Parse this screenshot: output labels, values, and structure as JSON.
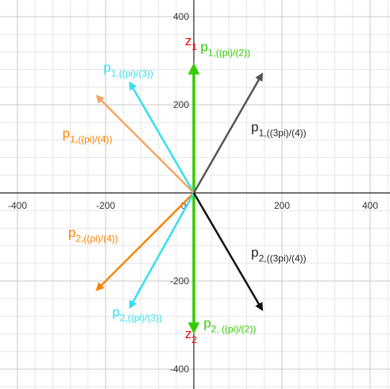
{
  "chart_data": {
    "type": "vector-plot",
    "xlim": [
      -440,
      440
    ],
    "ylim": [
      -440,
      440
    ],
    "grid": true,
    "x_ticks": [
      {
        "value": -400,
        "label": "-400"
      },
      {
        "value": -200,
        "label": "-200"
      },
      {
        "value": 0,
        "label": "0"
      },
      {
        "value": 200,
        "label": "200"
      },
      {
        "value": 400,
        "label": "400"
      }
    ],
    "y_ticks": [
      {
        "value": 400,
        "label": "400"
      },
      {
        "value": 200,
        "label": "200"
      },
      {
        "value": -200,
        "label": "-200"
      },
      {
        "value": -400,
        "label": "-400"
      }
    ],
    "vectors": [
      {
        "id": "z1",
        "x": 0,
        "y": 290,
        "color": "#33cc00",
        "width": 3.5
      },
      {
        "id": "z2",
        "x": 0,
        "y": -315,
        "color": "#33cc00",
        "width": 3.5
      },
      {
        "id": "p1_pi3",
        "x": -145,
        "y": 250,
        "color": "#33e0f0",
        "width": 2.5
      },
      {
        "id": "p1_pi4",
        "x": -220,
        "y": 220,
        "color": "#f4a460",
        "width": 2.5
      },
      {
        "id": "p1_3pi4",
        "x": 155,
        "y": 270,
        "color": "#555555",
        "width": 2.5
      },
      {
        "id": "p2_pi4",
        "x": -220,
        "y": -220,
        "color": "#ff8000",
        "width": 2.5
      },
      {
        "id": "p2_pi3",
        "x": -145,
        "y": -260,
        "color": "#33e0f0",
        "width": 2.5
      },
      {
        "id": "p2_3pi4",
        "x": 155,
        "y": -265,
        "color": "#111111",
        "width": 2.5
      }
    ],
    "labels": [
      {
        "id": "z1",
        "base": "z",
        "sub": "1",
        "color": "#ff0000",
        "x": -20,
        "y": 335
      },
      {
        "id": "z2",
        "base": "z",
        "sub": "2",
        "color": "#ff0000",
        "x": -20,
        "y": -330
      },
      {
        "id": "p1_pi2",
        "base": "p",
        "sub": "1,((pi)/(2))",
        "color": "#33cc00",
        "x": 15,
        "y": 322
      },
      {
        "id": "p1_pi3",
        "base": "p",
        "sub": "1,((pi)/(3))",
        "color": "#33e0f0",
        "x": -205,
        "y": 275
      },
      {
        "id": "p1_pi4",
        "base": "p",
        "sub": "1,((pi)/(4))",
        "color": "#ff8000",
        "x": -298,
        "y": 125
      },
      {
        "id": "p1_3pi4",
        "base": "p",
        "sub": "1,((3pi)/(4))",
        "color": "#222222",
        "x": 130,
        "y": 140
      },
      {
        "id": "p2_pi4",
        "base": "p",
        "sub": "2,((pi)/(4))",
        "color": "#ff8000",
        "x": -285,
        "y": -100
      },
      {
        "id": "p2_3pi4",
        "base": "p",
        "sub": "2,((3pi)/(4))",
        "color": "#222222",
        "x": 130,
        "y": -145
      },
      {
        "id": "p2_pi3",
        "base": "p",
        "sub": "2,((pi)/(3))",
        "color": "#33e0f0",
        "x": -185,
        "y": -280
      },
      {
        "id": "p2_pi2",
        "base": "p",
        "sub": "2, ((pi)/(2))",
        "color": "#33cc00",
        "x": 22,
        "y": -305
      }
    ]
  }
}
